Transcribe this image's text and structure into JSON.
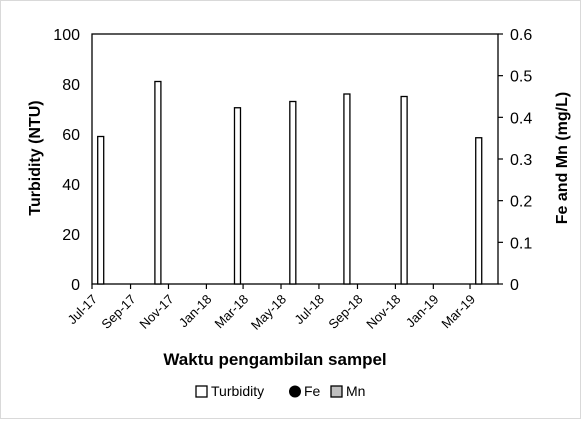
{
  "chart_data": {
    "type": "bar",
    "xlabel": "Waktu pengambilan sampel",
    "ylabel_left": "Turbidity (NTU)",
    "ylabel_right": "Fe and Mn (mg/L)",
    "categories": [
      "Jul-17",
      "Sep-17",
      "Nov-17",
      "Jan-18",
      "Mar-18",
      "May-18",
      "Jul-18",
      "Sep-18",
      "Nov-18",
      "Jan-19",
      "Mar-19"
    ],
    "x_range": [
      "2017-07-01",
      "2019-04-15"
    ],
    "ylim_left": [
      0,
      100
    ],
    "yticks_left": [
      "0",
      "20",
      "40",
      "60",
      "80",
      "100"
    ],
    "ylim_right": [
      0,
      0.6
    ],
    "yticks_right": [
      "0",
      "0.1",
      "0.2",
      "0.3",
      "0.4",
      "0.5",
      "0.6"
    ],
    "grid": false,
    "legend_position": "bottom",
    "series": [
      {
        "name": "Turbidity",
        "axis": "left",
        "marker": "bar",
        "color": "#ffffff",
        "edge_color": "#000000",
        "points": [
          {
            "date": "2017-07-15",
            "value": 59
          },
          {
            "date": "2017-10-15",
            "value": 81
          },
          {
            "date": "2018-02-20",
            "value": 70.5
          },
          {
            "date": "2018-05-20",
            "value": 73
          },
          {
            "date": "2018-08-15",
            "value": 76
          },
          {
            "date": "2018-11-15",
            "value": 75
          },
          {
            "date": "2019-03-15",
            "value": 58.5
          }
        ]
      },
      {
        "name": "Fe",
        "axis": "right",
        "marker": "circle",
        "color": "#000000",
        "points": []
      },
      {
        "name": "Mn",
        "axis": "right",
        "marker": "bar",
        "color": "#bfbfbf",
        "points": []
      }
    ]
  }
}
